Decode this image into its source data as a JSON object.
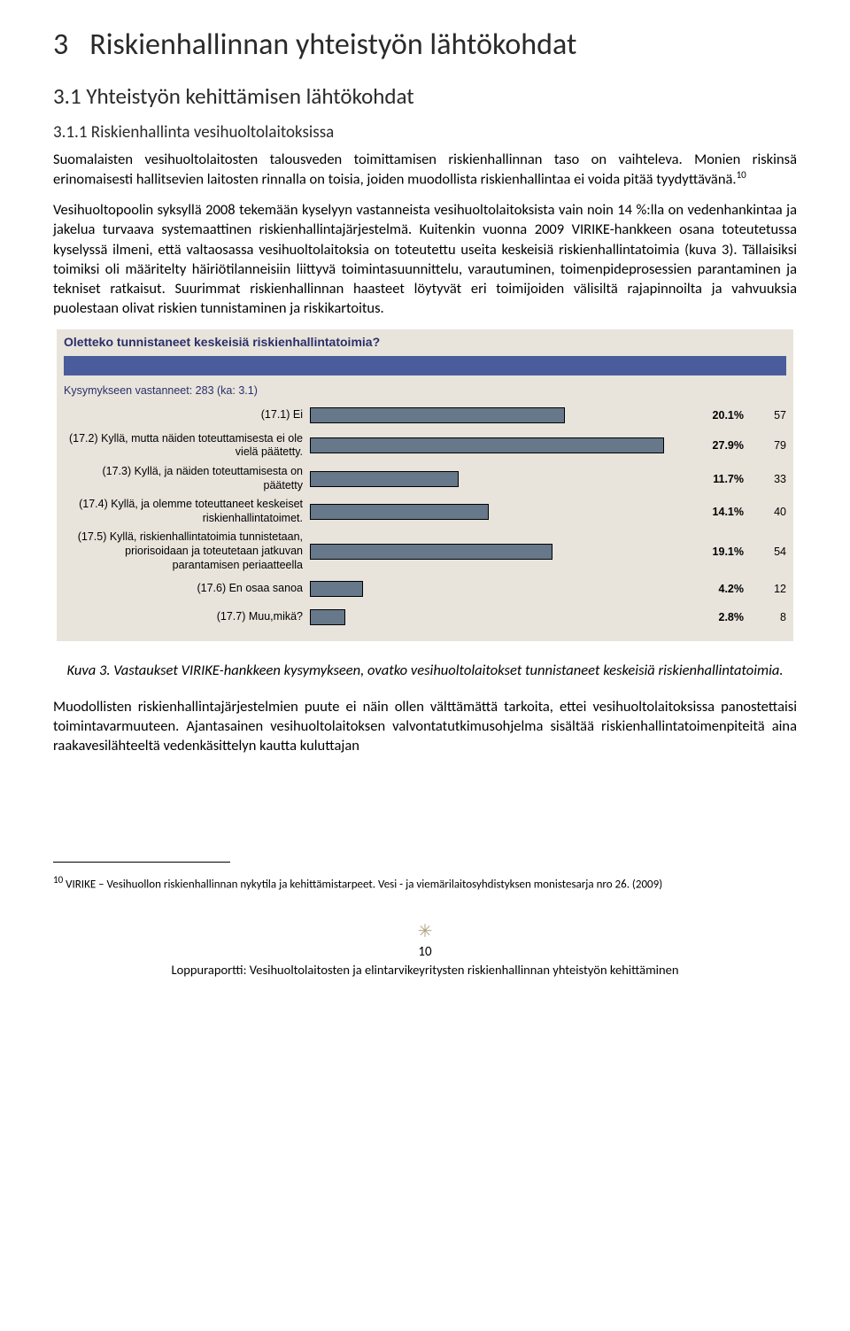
{
  "heading1_num": "3",
  "heading1_text": "Riskienhallinnan yhteistyön lähtökohdat",
  "heading2_num": "3.1",
  "heading2_text": "Yhteistyön kehittämisen lähtökohdat",
  "heading3_num": "3.1.1",
  "heading3_text": "Riskienhallinta vesihuoltolaitoksissa",
  "para1": "Suomalaisten vesihuoltolaitosten talousveden toimittamisen riskienhallinnan taso on vaihteleva. Monien riskinsä erinomaisesti hallitsevien laitosten rinnalla on toisia, joiden muodollista riskienhallintaa ei voida pitää tyydyttävänä.",
  "sup10": "10",
  "para2": "Vesihuoltopoolin syksyllä 2008 tekemään kyselyyn vastanneista vesihuoltolaitoksista vain noin 14 %:lla on vedenhankintaa ja jakelua turvaava systemaattinen riskienhallintajärjestelmä. Kuitenkin vuonna 2009 VIRIKE-hankkeen osana toteutetussa kyselyssä ilmeni, että valtaosassa vesihuoltolaitoksia on toteutettu useita keskeisiä riskienhallintatoimia (kuva 3). Tällaisiksi toimiksi oli määritelty häiriötilanneisiin liittyvä toimintasuunnittelu, varautuminen, toimenpideprosessien parantaminen ja tekniset ratkaisut. Suurimmat riskienhallinnan haasteet löytyvät eri toimijoiden välisiltä rajapinnoilta ja vahvuuksia puolestaan olivat riskien tunnistaminen ja riskikartoitus.",
  "chart": {
    "type": "bar",
    "title": "Oletteko tunnistaneet keskeisiä riskienhallintatoimia?",
    "meta": "Kysymykseen vastanneet: 283 (ka: 3.1)",
    "background_color": "#e8e4dc",
    "bar_color": "#66788a",
    "bar_border": "#000000",
    "title_color": "#2b2f6a",
    "accent_bar_color": "#4a5c9c",
    "max_pct": 30,
    "rows": [
      {
        "label": "(17.1) Ei",
        "pct": 20.1,
        "count": 57
      },
      {
        "label": "(17.2) Kyllä, mutta näiden toteuttamisesta ei ole vielä päätetty.",
        "pct": 27.9,
        "count": 79
      },
      {
        "label": "(17.3) Kyllä, ja näiden toteuttamisesta on päätetty",
        "pct": 11.7,
        "count": 33
      },
      {
        "label": "(17.4) Kyllä, ja olemme toteuttaneet keskeiset riskienhallintatoimet.",
        "pct": 14.1,
        "count": 40
      },
      {
        "label": "(17.5) Kyllä, riskienhallintatoimia tunnistetaan, priorisoidaan ja toteutetaan jatkuvan parantamisen periaatteella",
        "pct": 19.1,
        "count": 54
      },
      {
        "label": "(17.6) En osaa sanoa",
        "pct": 4.2,
        "count": 12
      },
      {
        "label": "(17.7) Muu,mikä?",
        "pct": 2.8,
        "count": 8
      }
    ]
  },
  "caption": "Kuva 3. Vastaukset VIRIKE-hankkeen kysymykseen, ovatko vesihuoltolaitokset tunnistaneet keskeisiä riskienhallintatoimia.",
  "para3": "Muodollisten riskienhallintajärjestelmien puute ei näin ollen välttämättä tarkoita, ettei vesihuoltolaitoksissa panostettaisi toimintavarmuuteen. Ajantasainen vesihuoltolaitoksen valvontatutkimusohjelma sisältää riskienhallintatoimenpiteitä aina raakavesilähteeltä vedenkäsittelyn kautta kuluttajan",
  "footnote_mark": "10",
  "footnote_text": " VIRIKE – Vesihuollon riskienhallinnan nykytila ja kehittämistarpeet. Vesi - ja viemärilaitosyhdistyksen monistesarja nro 26.  (2009)",
  "page_number": "10",
  "footer": "Loppuraportti: Vesihuoltolaitosten ja elintarvikeyritysten riskienhallinnan yhteistyön kehittäminen"
}
